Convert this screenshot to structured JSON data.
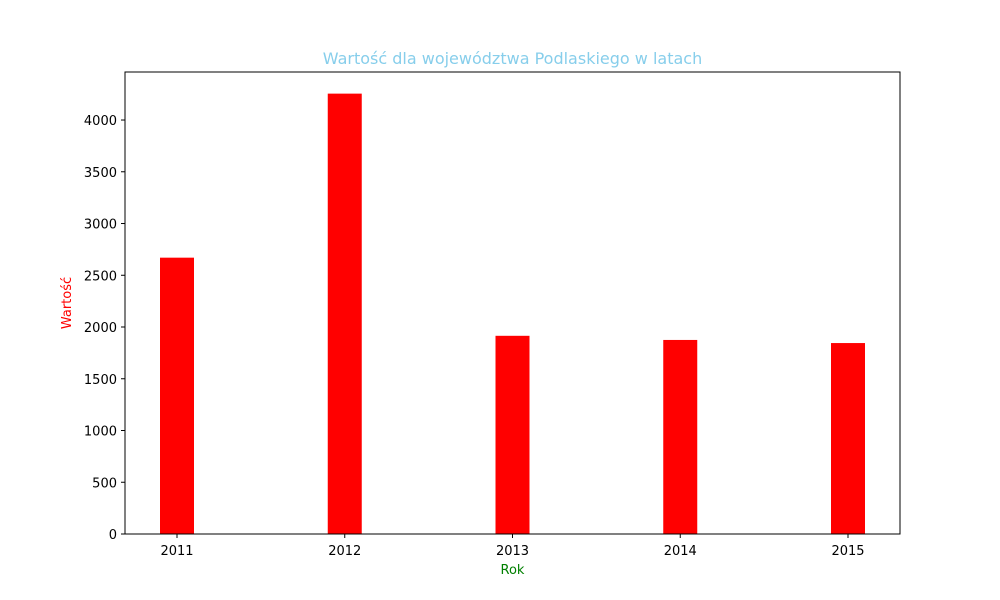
{
  "chart_data": {
    "type": "bar",
    "title": "Wartość dla województwa Podlaskiego w latach",
    "xlabel": "Rok",
    "ylabel": "Wartość",
    "categories": [
      "2011",
      "2012",
      "2013",
      "2014",
      "2015"
    ],
    "values": [
      2670,
      4255,
      1915,
      1875,
      1845
    ],
    "ylim": [
      0,
      4464
    ],
    "yticks": [
      0,
      500,
      1000,
      1500,
      2000,
      2500,
      3000,
      3500,
      4000
    ],
    "grid": false,
    "colors": {
      "bar": "#ff0000",
      "title": "#87ceeb",
      "xlabel": "#008000",
      "ylabel": "#ff0000"
    }
  }
}
